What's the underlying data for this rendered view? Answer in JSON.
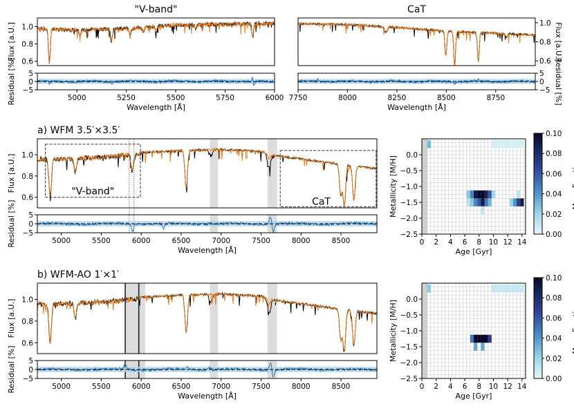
{
  "chart_data": {
    "top_left": {
      "type": "line",
      "title": "\"V-band\"",
      "ylabel": "Flux [a.U.]",
      "resid_ylabel": "Residual [%]",
      "xlabel": "Wavelength [Å]",
      "xlim": [
        4800,
        6000
      ],
      "ylim": [
        0.55,
        1.1
      ],
      "xticks": [
        "5000",
        "5250",
        "5500",
        "5750",
        "6000"
      ],
      "yticks": [
        "0.6",
        "0.8",
        "1.0"
      ],
      "resid_yticks": [
        "5",
        "0",
        "−5"
      ],
      "resid_ylim": [
        -5,
        5
      ],
      "continuum": [
        [
          4800,
          1.0
        ],
        [
          5000,
          0.98
        ],
        [
          5250,
          1.0
        ],
        [
          5500,
          1.04
        ],
        [
          5750,
          1.05
        ],
        [
          6000,
          1.06
        ]
      ],
      "lines": [
        [
          4861,
          0.4
        ],
        [
          5175,
          0.14
        ],
        [
          5270,
          0.08
        ],
        [
          5890,
          0.15
        ],
        [
          5015,
          0.06
        ],
        [
          5335,
          0.06
        ],
        [
          5400,
          0.05
        ],
        [
          5600,
          0.05
        ]
      ],
      "residual_spikes": [
        [
          4861,
          -1.5
        ],
        [
          5175,
          -1.0
        ],
        [
          5890,
          3.5
        ],
        [
          5895,
          -4.0
        ]
      ]
    },
    "top_right": {
      "type": "line",
      "title": "CaT",
      "ylabel": "Flux [a.U.]",
      "resid_ylabel": "Residual [%]",
      "xlabel": "Wavelength [Å]",
      "xlim": [
        7750,
        8950
      ],
      "ylim": [
        0.55,
        1.05
      ],
      "xticks": [
        "7750",
        "8000",
        "8250",
        "8500",
        "8750"
      ],
      "yticks": [
        "0.6",
        "0.8",
        "1.0"
      ],
      "resid_yticks": [
        "5",
        "0",
        "−5"
      ],
      "resid_ylim": [
        -5,
        5
      ],
      "continuum": [
        [
          7750,
          1.0
        ],
        [
          8000,
          0.99
        ],
        [
          8250,
          0.96
        ],
        [
          8500,
          0.92
        ],
        [
          8750,
          0.9
        ],
        [
          8950,
          0.88
        ]
      ],
      "lines": [
        [
          8498,
          0.25
        ],
        [
          8542,
          0.36
        ],
        [
          8662,
          0.3
        ],
        [
          8200,
          0.04
        ],
        [
          8190,
          0.05
        ],
        [
          8806,
          0.04
        ]
      ],
      "residual_spikes": [
        [
          7850,
          1.2
        ],
        [
          8542,
          -1.0
        ],
        [
          8662,
          1.0
        ]
      ]
    },
    "panel_a": {
      "type": "line",
      "title": "a) WFM 3.5′×3.5′",
      "ylabel": "Flux [a.U.]",
      "resid_ylabel": "Residual [%]",
      "xlabel": "Wavelength [Å]",
      "xlim": [
        4700,
        8950
      ],
      "ylim": [
        0.5,
        1.15
      ],
      "xticks": [
        "5000",
        "5500",
        "6000",
        "6500",
        "7000",
        "7500",
        "8000",
        "8500"
      ],
      "yticks": [
        "0.6",
        "0.8",
        "1.0"
      ],
      "resid_yticks": [
        "5",
        "0",
        "−5"
      ],
      "resid_ylim": [
        -5,
        5
      ],
      "masked_regions": [
        [
          6860,
          6960
        ],
        [
          7580,
          7700
        ]
      ],
      "box_labels": [
        "\"V-band\"",
        "CaT"
      ],
      "vband_box": [
        [
          4800,
          5990
        ],
        [
          0.6,
          1.1
        ]
      ],
      "cat_box": [
        [
          7740,
          8940
        ],
        [
          0.51,
          1.04
        ]
      ],
      "dotted_lines": [
        5850,
        5910
      ],
      "continuum": [
        [
          4700,
          0.98
        ],
        [
          5000,
          0.98
        ],
        [
          5500,
          1.0
        ],
        [
          6000,
          1.03
        ],
        [
          6500,
          1.05
        ],
        [
          7000,
          1.06
        ],
        [
          7500,
          1.04
        ],
        [
          7700,
          1.0
        ],
        [
          8000,
          0.97
        ],
        [
          8500,
          0.92
        ],
        [
          8950,
          0.88
        ]
      ],
      "lines": [
        [
          4861,
          0.35
        ],
        [
          5175,
          0.14
        ],
        [
          5890,
          0.16
        ],
        [
          6563,
          0.35
        ],
        [
          8498,
          0.28
        ],
        [
          8542,
          0.38
        ],
        [
          8662,
          0.32
        ],
        [
          7600,
          0.05
        ]
      ],
      "telluric": [
        [
          6870,
          0.05
        ],
        [
          7600,
          0.1
        ]
      ],
      "residual_spikes": [
        [
          5890,
          -4.0
        ],
        [
          6860,
          1.2
        ],
        [
          7620,
          4.5
        ],
        [
          7650,
          -4.5
        ],
        [
          6280,
          -2.5
        ]
      ]
    },
    "panel_b": {
      "type": "line",
      "title": "b) WFM-AO 1′×1′",
      "ylabel": "Flux [a.U.]",
      "resid_ylabel": "Residual [%]",
      "xlabel": "Wavelength [Å]",
      "xlim": [
        4700,
        8950
      ],
      "ylim": [
        0.5,
        1.15
      ],
      "xticks": [
        "5000",
        "5500",
        "6000",
        "6500",
        "7000",
        "7500",
        "8000",
        "8500"
      ],
      "yticks": [
        "0.6",
        "0.8",
        "1.0"
      ],
      "resid_yticks": [
        "5",
        "0",
        "−5"
      ],
      "resid_ylim": [
        -5,
        5
      ],
      "masked_regions": [
        [
          5800,
          6050
        ],
        [
          6860,
          6960
        ],
        [
          7580,
          7700
        ]
      ],
      "dark_lines": [
        5800,
        5970
      ],
      "continuum": [
        [
          4700,
          0.98
        ],
        [
          5000,
          0.98
        ],
        [
          5500,
          1.0
        ],
        [
          6000,
          1.03
        ],
        [
          6500,
          1.05
        ],
        [
          7000,
          1.06
        ],
        [
          7500,
          1.04
        ],
        [
          7700,
          1.0
        ],
        [
          8000,
          0.97
        ],
        [
          8500,
          0.92
        ],
        [
          8950,
          0.88
        ]
      ],
      "lines": [
        [
          4861,
          0.35
        ],
        [
          5175,
          0.14
        ],
        [
          6563,
          0.35
        ],
        [
          8498,
          0.28
        ],
        [
          8542,
          0.38
        ],
        [
          8662,
          0.32
        ],
        [
          7600,
          0.05
        ]
      ],
      "telluric": [
        [
          6870,
          0.05
        ],
        [
          7600,
          0.1
        ]
      ],
      "residual_spikes": [
        [
          5800,
          3.0
        ],
        [
          6860,
          1.2
        ],
        [
          7620,
          4.5
        ],
        [
          7650,
          -4.5
        ],
        [
          6580,
          1.5
        ]
      ]
    },
    "heatmap_a": {
      "type": "heatmap",
      "xlabel": "Age [Gyr]",
      "ylabel": "Metallicity [M/H]",
      "colorbar_label": "Mass Fraction",
      "xticks": [
        "0",
        "2",
        "4",
        "6",
        "8",
        "10",
        "12",
        "14"
      ],
      "yticks": [
        "0.0",
        "−0.5",
        "−1.0",
        "−1.5",
        "−2.0",
        "−2.5"
      ],
      "cbar_ticks": [
        "0.00",
        "0.02",
        "0.04",
        "0.06",
        "0.08",
        "0.10"
      ],
      "xlim": [
        0,
        14.5
      ],
      "ylim": [
        -2.5,
        0.5
      ],
      "vmax": 0.1,
      "cells": [
        [
          1.0,
          0.33,
          0.03
        ],
        [
          10.0,
          0.33,
          0.005
        ],
        [
          10.5,
          0.33,
          0.005
        ],
        [
          11.0,
          0.33,
          0.005
        ],
        [
          11.5,
          0.33,
          0.005
        ],
        [
          12.0,
          0.33,
          0.005
        ],
        [
          12.5,
          0.33,
          0.005
        ],
        [
          13.0,
          0.33,
          0.005
        ],
        [
          13.5,
          0.33,
          0.005
        ],
        [
          14.0,
          0.33,
          0.005
        ],
        [
          6.5,
          -1.25,
          0.025
        ],
        [
          7.0,
          -1.25,
          0.045
        ],
        [
          7.5,
          -1.25,
          0.09
        ],
        [
          8.0,
          -1.25,
          0.1
        ],
        [
          8.5,
          -1.25,
          0.1
        ],
        [
          9.0,
          -1.25,
          0.085
        ],
        [
          9.5,
          -1.25,
          0.06
        ],
        [
          10.0,
          -1.25,
          0.02
        ],
        [
          6.5,
          -1.5,
          0.012
        ],
        [
          7.0,
          -1.5,
          0.025
        ],
        [
          7.5,
          -1.5,
          0.045
        ],
        [
          8.0,
          -1.5,
          0.06
        ],
        [
          8.5,
          -1.5,
          0.09
        ],
        [
          9.0,
          -1.5,
          0.05
        ],
        [
          9.5,
          -1.5,
          0.03
        ],
        [
          12.5,
          -1.5,
          0.02
        ],
        [
          13.0,
          -1.5,
          0.04
        ],
        [
          13.5,
          -1.5,
          0.07
        ],
        [
          14.0,
          -1.5,
          0.09
        ],
        [
          13.5,
          -1.25,
          0.012
        ],
        [
          8.5,
          -1.75,
          0.01
        ]
      ]
    },
    "heatmap_b": {
      "type": "heatmap",
      "xlabel": "Age [Gyr]",
      "ylabel": "Metallicity [M/H]",
      "colorbar_label": "Mass Fraction",
      "xticks": [
        "0",
        "2",
        "4",
        "6",
        "8",
        "10",
        "12",
        "14"
      ],
      "yticks": [
        "0.0",
        "−0.5",
        "−1.0",
        "−1.5",
        "−2.0",
        "−2.5"
      ],
      "cbar_ticks": [
        "0.00",
        "0.02",
        "0.04",
        "0.06",
        "0.08",
        "0.10"
      ],
      "xlim": [
        0,
        14.5
      ],
      "ylim": [
        -2.5,
        0.5
      ],
      "vmax": 0.1,
      "cells": [
        [
          1.0,
          0.33,
          0.025
        ],
        [
          10.0,
          0.33,
          0.008
        ],
        [
          10.5,
          0.33,
          0.008
        ],
        [
          11.0,
          0.33,
          0.008
        ],
        [
          11.5,
          0.33,
          0.008
        ],
        [
          12.0,
          0.33,
          0.008
        ],
        [
          12.5,
          0.33,
          0.008
        ],
        [
          13.0,
          0.33,
          0.008
        ],
        [
          13.5,
          0.33,
          0.008
        ],
        [
          14.0,
          0.33,
          0.008
        ],
        [
          7.0,
          -1.25,
          0.05
        ],
        [
          7.5,
          -1.25,
          0.1
        ],
        [
          8.0,
          -1.25,
          0.1
        ],
        [
          8.5,
          -1.25,
          0.1
        ],
        [
          9.0,
          -1.25,
          0.1
        ],
        [
          9.5,
          -1.25,
          0.07
        ],
        [
          7.5,
          -1.5,
          0.035
        ],
        [
          8.5,
          -1.5,
          0.035
        ]
      ]
    }
  },
  "colors": {
    "data": "#000000",
    "model": "#e07b22",
    "residual": "#1f77b4",
    "residual_band": "#b6d2e8",
    "mask": "#dcdcdc"
  }
}
